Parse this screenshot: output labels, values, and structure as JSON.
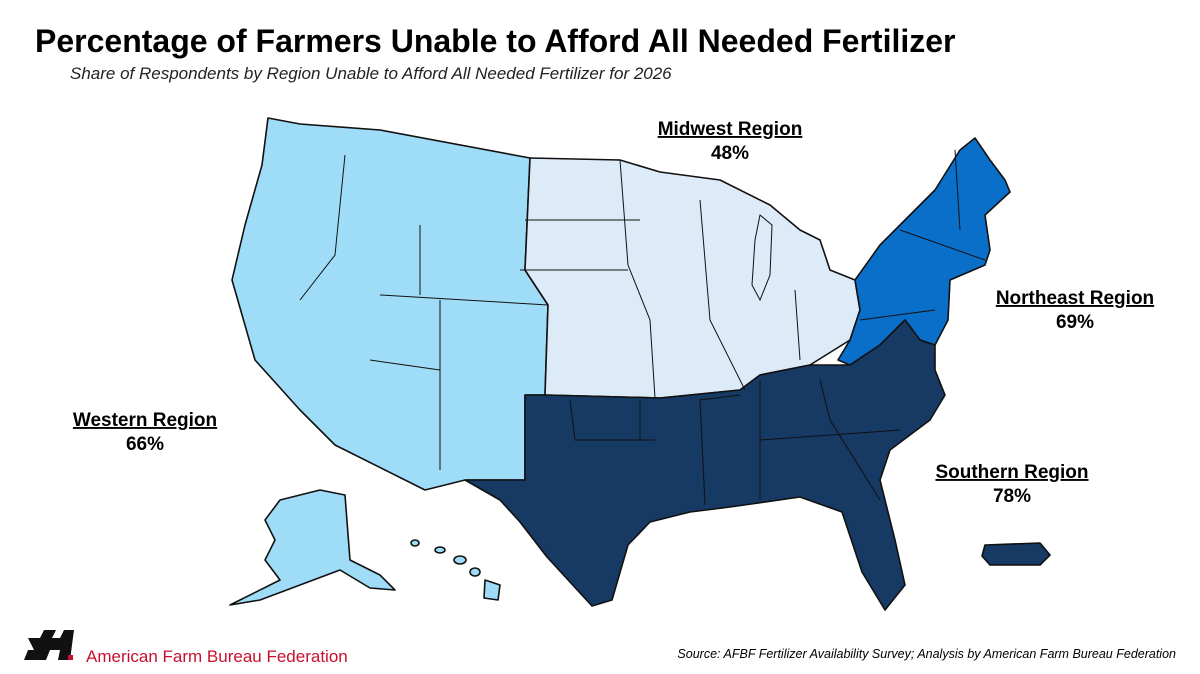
{
  "header": {
    "title": "Percentage of Farmers Unable to Afford All Needed Fertilizer",
    "subtitle": "Share of Respondents by Region Unable to Afford All Needed Fertilizer for 2026"
  },
  "regions": [
    {
      "name": "Western Region",
      "value": "66%"
    },
    {
      "name": "Midwest Region",
      "value": "48%"
    },
    {
      "name": "Northeast Region",
      "value": "69%"
    },
    {
      "name": "Southern Region",
      "value": "78%"
    }
  ],
  "footer": {
    "organization": "American Farm Bureau Federation",
    "source": "Source: AFBF Fertilizer Availability Survey; Analysis by American Farm Bureau Federation"
  }
}
